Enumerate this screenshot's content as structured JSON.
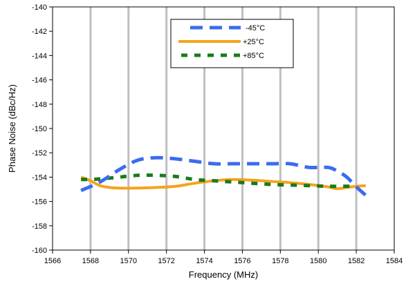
{
  "chart_data": {
    "type": "line",
    "title": "",
    "xlabel": "Frequency (MHz)",
    "ylabel": "Phase Noise (dBc/Hz)",
    "xlim": [
      1566,
      1584
    ],
    "ylim": [
      -160,
      -140
    ],
    "x_ticks": [
      1566,
      1568,
      1570,
      1572,
      1574,
      1576,
      1578,
      1580,
      1582,
      1584
    ],
    "y_ticks": [
      -160,
      -158,
      -156,
      -154,
      -152,
      -150,
      -148,
      -146,
      -144,
      -142,
      -140
    ],
    "x_tick_labels": [
      "1566",
      "1568",
      "1570",
      "1572",
      "1574",
      "1576",
      "1578",
      "1580",
      "1582",
      "1584"
    ],
    "y_tick_labels": [
      "-160",
      "-158",
      "-156",
      "-154",
      "-152",
      "-150",
      "-148",
      "-146",
      "-144",
      "-142",
      "-140"
    ],
    "grid": "vertical",
    "legend_position": "top-center",
    "series": [
      {
        "name": "-45°C",
        "color": "#3b6cf0",
        "dash": "long-dash",
        "x": [
          1567.5,
          1568.5,
          1569.5,
          1570.5,
          1571.5,
          1572.5,
          1573.5,
          1574.5,
          1575.5,
          1576.5,
          1577.5,
          1578.5,
          1579.5,
          1580.5,
          1581.0,
          1581.5,
          1582.0,
          1582.5
        ],
        "values": [
          -155.1,
          -154.4,
          -153.4,
          -152.6,
          -152.4,
          -152.5,
          -152.7,
          -152.9,
          -152.9,
          -152.9,
          -152.9,
          -152.9,
          -153.2,
          -153.2,
          -153.5,
          -154.0,
          -154.8,
          -155.5
        ]
      },
      {
        "name": "+25°C",
        "color": "#f5a31a",
        "dash": "solid",
        "x": [
          1567.5,
          1568.0,
          1568.5,
          1569.0,
          1569.5,
          1570.5,
          1571.5,
          1572.5,
          1573.5,
          1574.5,
          1575.5,
          1576.5,
          1577.5,
          1578.5,
          1579.5,
          1580.5,
          1581.0,
          1581.5,
          1582.0,
          1582.5
        ],
        "values": [
          -154.0,
          -154.3,
          -154.7,
          -154.85,
          -154.9,
          -154.9,
          -154.85,
          -154.75,
          -154.5,
          -154.3,
          -154.2,
          -154.25,
          -154.35,
          -154.45,
          -154.6,
          -154.8,
          -154.95,
          -154.85,
          -154.75,
          -154.7
        ]
      },
      {
        "name": "+85°C",
        "color": "#1a7a1a",
        "dash": "short-dash",
        "x": [
          1567.5,
          1568.5,
          1569.5,
          1570.5,
          1571.5,
          1572.5,
          1573.5,
          1574.5,
          1575.5,
          1576.5,
          1577.5,
          1578.5,
          1579.5,
          1580.5,
          1581.5,
          1582.0
        ],
        "values": [
          -154.2,
          -154.15,
          -154.0,
          -153.85,
          -153.85,
          -153.95,
          -154.2,
          -154.3,
          -154.4,
          -154.5,
          -154.6,
          -154.65,
          -154.7,
          -154.75,
          -154.75,
          -154.7
        ]
      }
    ]
  }
}
